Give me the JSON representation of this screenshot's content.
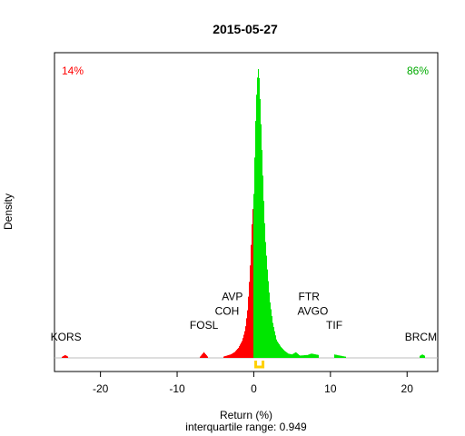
{
  "chart_data": {
    "type": "area",
    "title": "2015-05-27",
    "xlabel": "Return (%)",
    "ylabel": "Density",
    "subtitle": "interquartile range: 0.949",
    "xlim": [
      -26,
      24
    ],
    "ylim": [
      0,
      1
    ],
    "x_ticks": [
      -20,
      -10,
      0,
      10,
      20
    ],
    "grid": false,
    "colors": {
      "negative": "#ff0000",
      "positive": "#00e600",
      "iqr": "#ffd000",
      "baseline": "#bebebe",
      "left_pct": "#ff0000",
      "right_pct": "#00aa00"
    },
    "percent_negative": "14%",
    "percent_positive": "86%",
    "density": [
      [
        -25,
        0.004
      ],
      [
        -24.6,
        0.01
      ],
      [
        -24.2,
        0.004
      ],
      [
        -7,
        0.004
      ],
      [
        -6.5,
        0.02
      ],
      [
        -6,
        0.004
      ],
      [
        -4,
        0.004
      ],
      [
        -3.5,
        0.008
      ],
      [
        -3,
        0.012
      ],
      [
        -2.5,
        0.02
      ],
      [
        -2,
        0.035
      ],
      [
        -1.5,
        0.06
      ],
      [
        -1.1,
        0.1
      ],
      [
        -0.8,
        0.17
      ],
      [
        -0.5,
        0.3
      ],
      [
        -0.2,
        0.48
      ],
      [
        0,
        0.56
      ],
      [
        0.15,
        0.72
      ],
      [
        0.3,
        0.88
      ],
      [
        0.5,
        0.98
      ],
      [
        0.6,
        1.0
      ],
      [
        0.75,
        0.96
      ],
      [
        0.9,
        0.85
      ],
      [
        1.1,
        0.7
      ],
      [
        1.3,
        0.55
      ],
      [
        1.5,
        0.42
      ],
      [
        1.8,
        0.3
      ],
      [
        2.1,
        0.2
      ],
      [
        2.5,
        0.12
      ],
      [
        3,
        0.06
      ],
      [
        3.5,
        0.04
      ],
      [
        4,
        0.025
      ],
      [
        4.5,
        0.015
      ],
      [
        5,
        0.012
      ],
      [
        5.5,
        0.02
      ],
      [
        6,
        0.008
      ],
      [
        7,
        0.01
      ],
      [
        7.5,
        0.015
      ],
      [
        8.5,
        0.01
      ],
      [
        10.5,
        0.012
      ],
      [
        12,
        0.004
      ],
      [
        21.6,
        0.006
      ],
      [
        22,
        0.012
      ],
      [
        22.4,
        0.006
      ]
    ],
    "iqr": [
      0.25,
      1.2
    ],
    "annotations": [
      {
        "label": "KORS",
        "x": -24.5,
        "y": 0.06
      },
      {
        "label": "FOSL",
        "x": -6.5,
        "y": 0.1
      },
      {
        "label": "COH",
        "x": -3.5,
        "y": 0.15
      },
      {
        "label": "AVP",
        "x": -2.8,
        "y": 0.2
      },
      {
        "label": "FTR",
        "x": 7.2,
        "y": 0.2
      },
      {
        "label": "AVGO",
        "x": 7.7,
        "y": 0.15
      },
      {
        "label": "TIF",
        "x": 10.5,
        "y": 0.1
      },
      {
        "label": "BRCM",
        "x": 21.8,
        "y": 0.06
      }
    ]
  }
}
